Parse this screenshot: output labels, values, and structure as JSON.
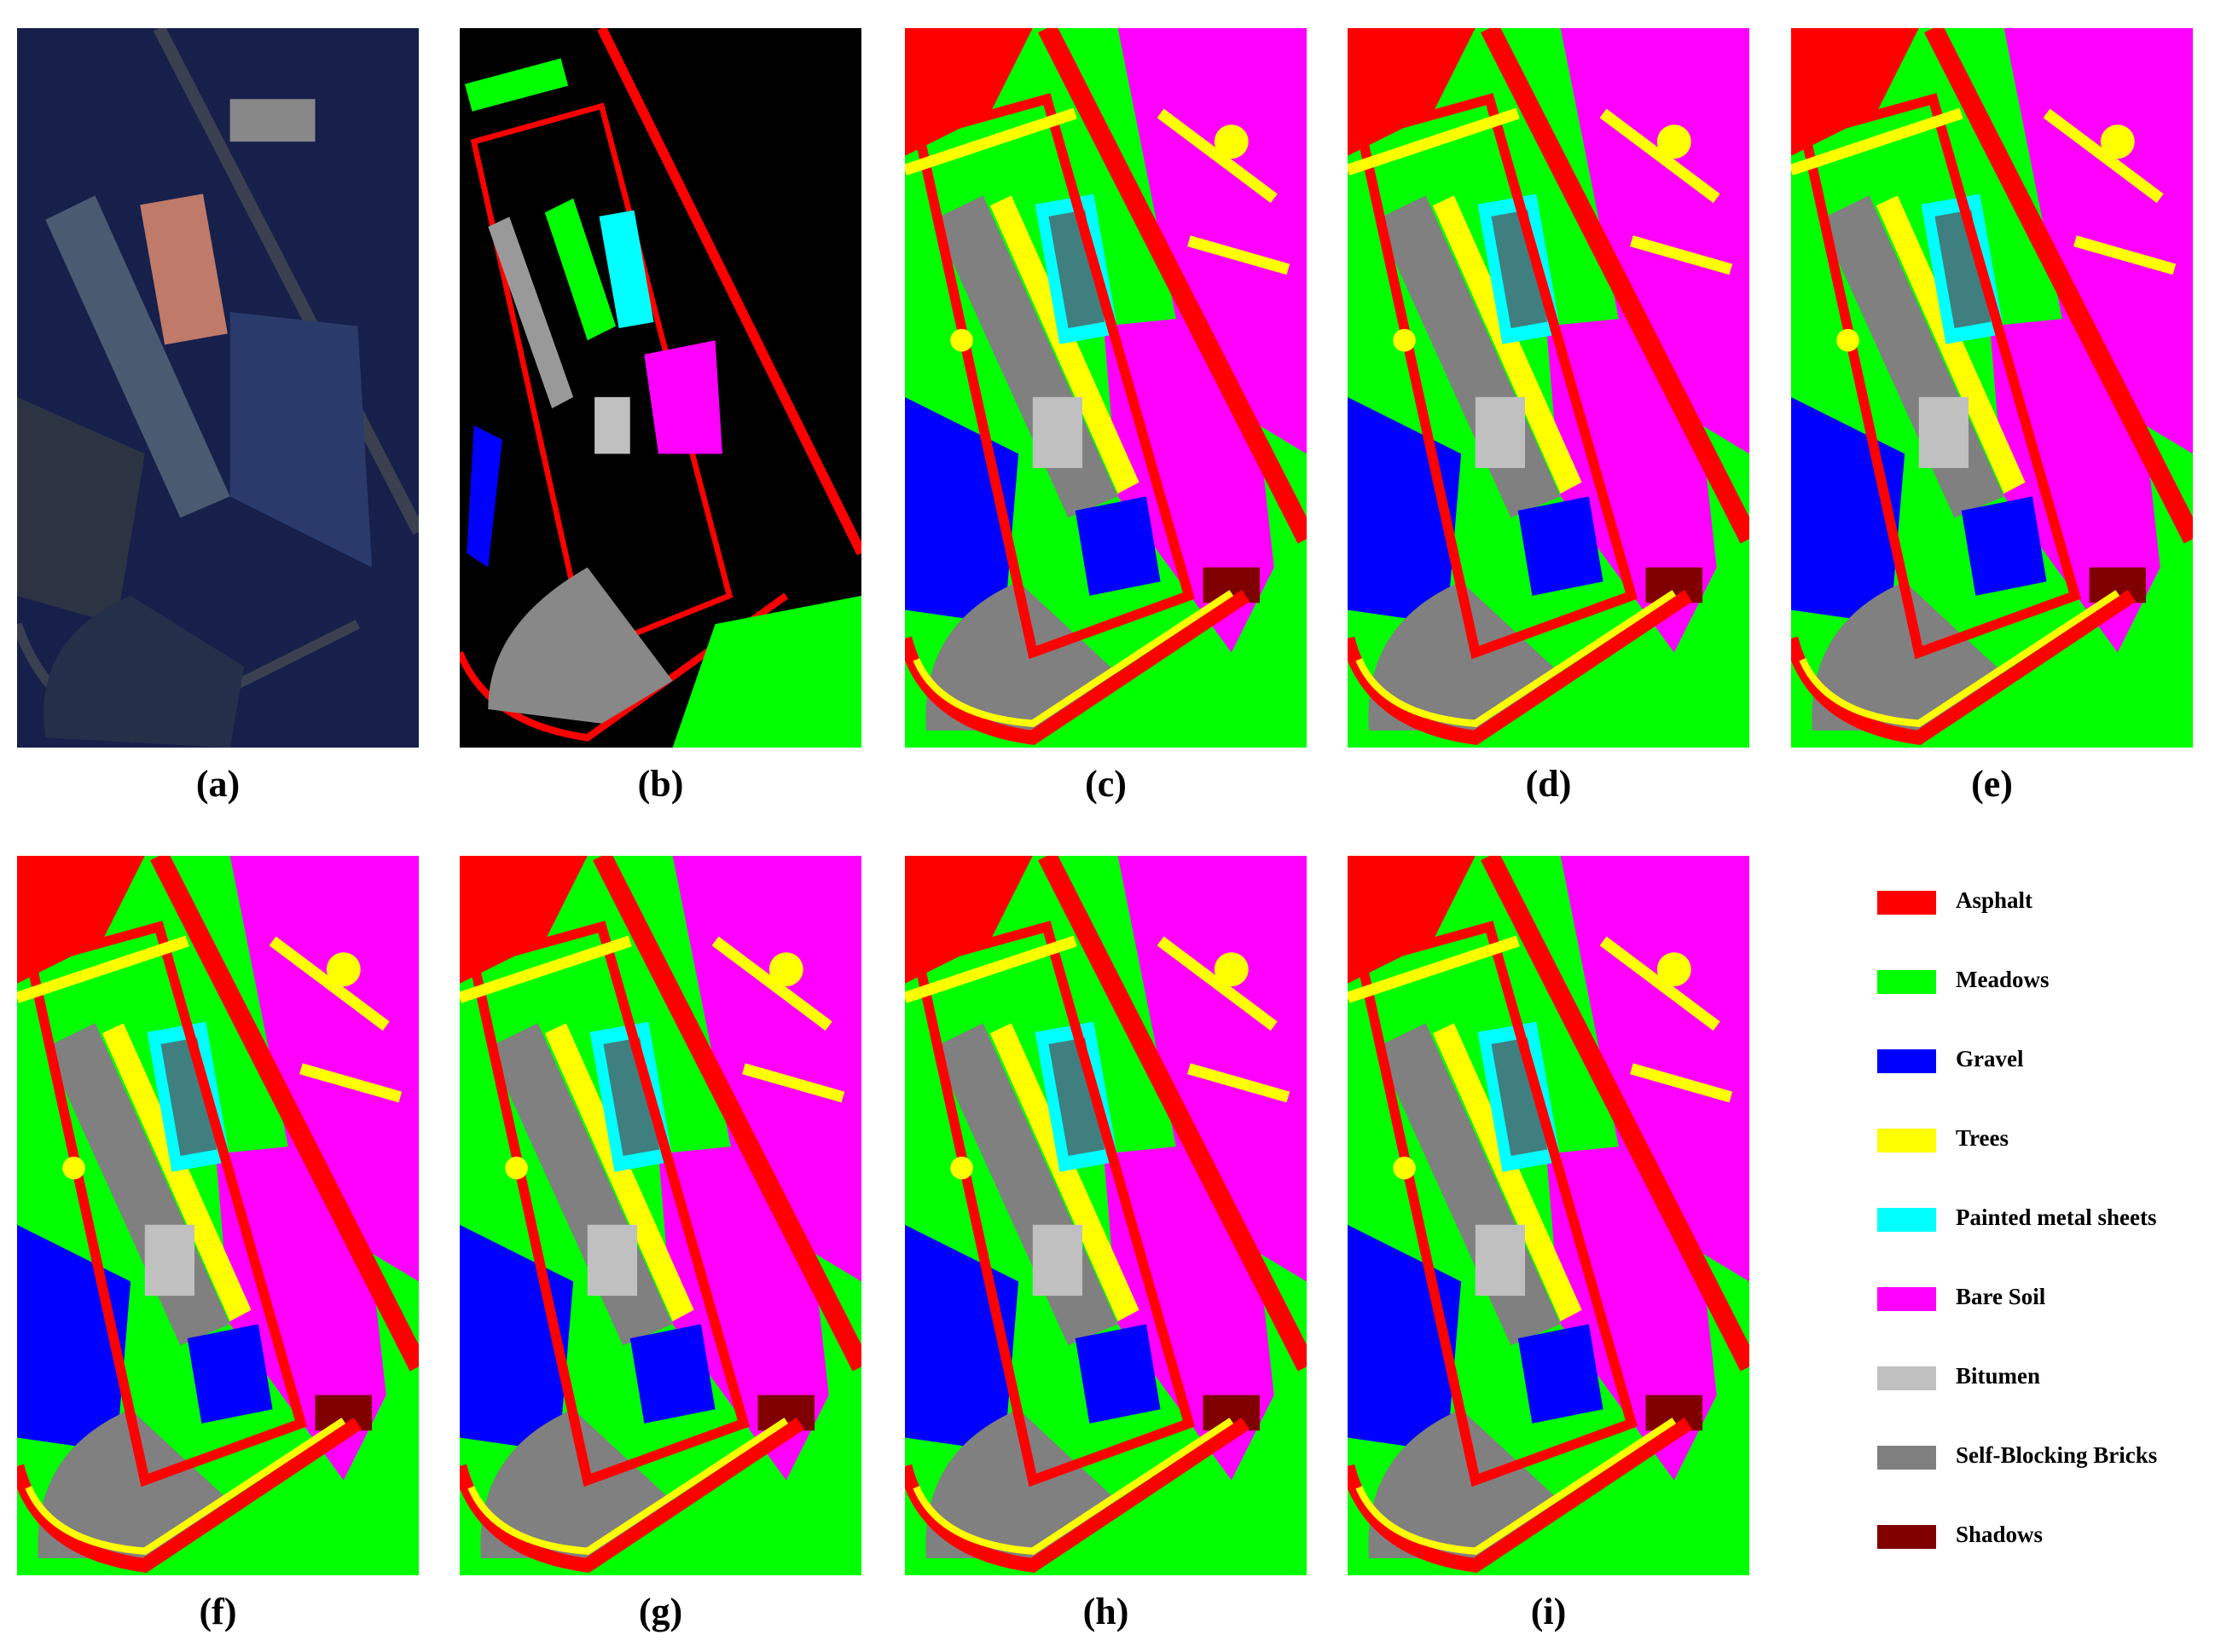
{
  "panels": [
    {
      "label": "(a)"
    },
    {
      "label": "(b)"
    },
    {
      "label": "(c)"
    },
    {
      "label": "(d)"
    },
    {
      "label": "(e)"
    },
    {
      "label": "(f)"
    },
    {
      "label": "(g)"
    },
    {
      "label": "(h)"
    },
    {
      "label": "(i)"
    }
  ],
  "legend": [
    {
      "name": "Asphalt",
      "color": "#ff0000"
    },
    {
      "name": "Meadows",
      "color": "#00ff00"
    },
    {
      "name": "Gravel",
      "color": "#0000ff"
    },
    {
      "name": "Trees",
      "color": "#ffff00"
    },
    {
      "name": "Painted metal sheets",
      "color": "#00ffff"
    },
    {
      "name": "Bare Soil",
      "color": "#ff00ff"
    },
    {
      "name": "Bitumen",
      "color": "#c0c0c0"
    },
    {
      "name": "Self-Blocking Bricks",
      "color": "#808080"
    },
    {
      "name": "Shadows",
      "color": "#800000"
    }
  ]
}
